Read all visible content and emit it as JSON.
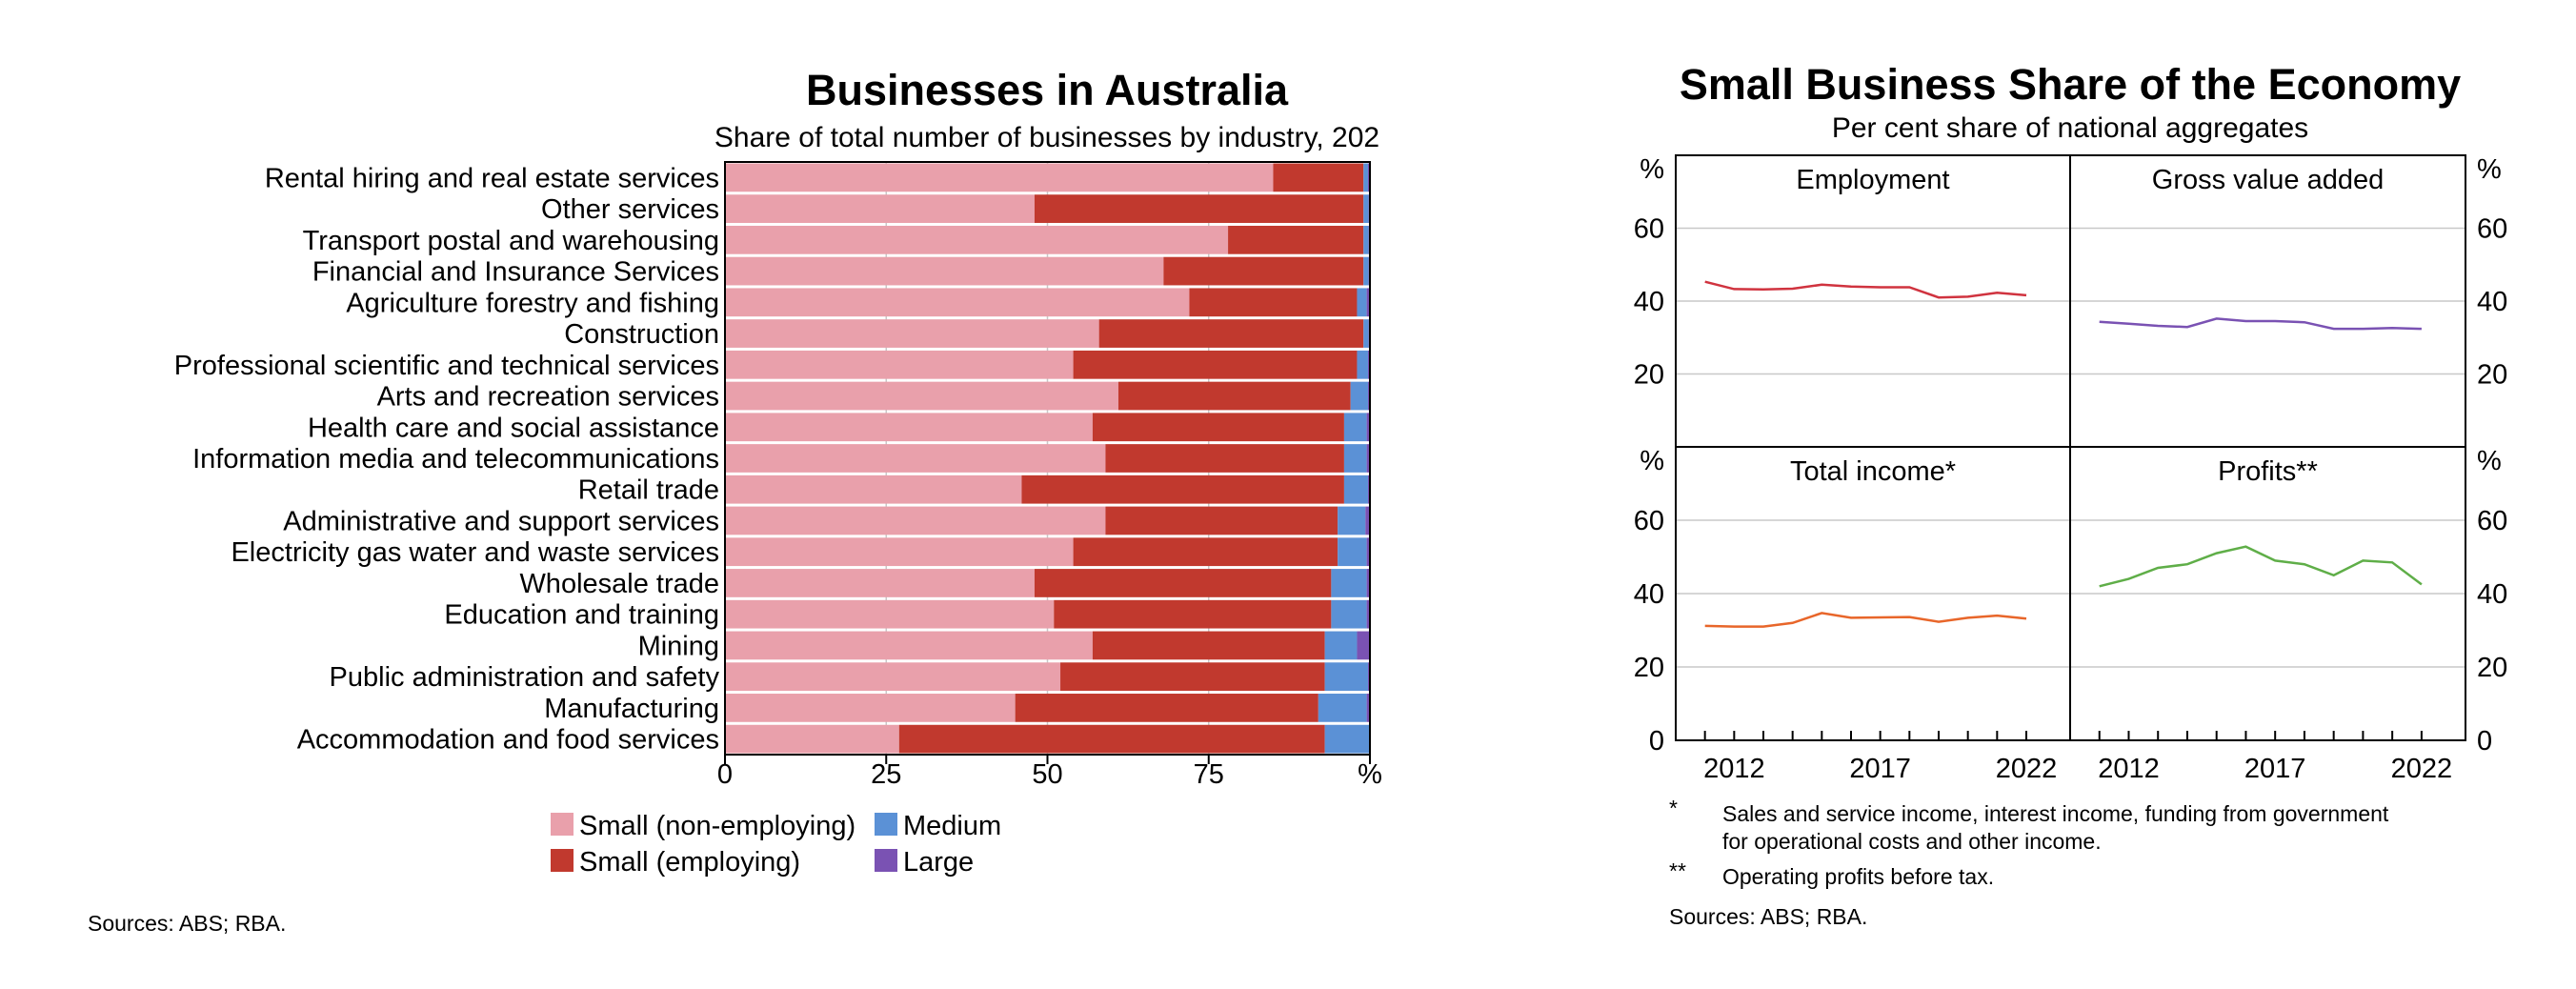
{
  "colors": {
    "small_non_employing": "#e9a0ab",
    "small_employing": "#c1392e",
    "medium": "#5b91d6",
    "large": "#7a52b3",
    "employment": "#d0333f",
    "gva": "#7a52b3",
    "total_income": "#e8662a",
    "profits": "#5fae48",
    "axis": "#000000",
    "grid": "#c8c8c8"
  },
  "left": {
    "title": "Businesses in Australia",
    "subtitle": "Share of total number of businesses by industry, 202",
    "unit": "%",
    "legend": [
      "Small (non-employing)",
      "Medium",
      "Small (employing)",
      "Large"
    ],
    "note": "Sources: ABS; RBA."
  },
  "right": {
    "title": "Small Business Share of the Economy",
    "subtitle": "Per cent share of national aggregates",
    "unit_label": "%",
    "y_ticks": [
      "60",
      "40",
      "20"
    ],
    "zero_label": "0",
    "x_ticks": [
      "2012",
      "2017",
      "2022"
    ],
    "panels": [
      "Employment",
      "Gross value added",
      "Total income*",
      "Profits**"
    ],
    "footnotes": [
      {
        "mark": "*",
        "text": "Sales and service income, interest income, funding from government",
        "text2": "for operational costs and other income."
      },
      {
        "mark": "**",
        "text": "Operating profits before tax."
      }
    ],
    "note": "Sources: ABS; RBA."
  },
  "chart_data": [
    {
      "type": "bar",
      "stacked": true,
      "orientation": "horizontal",
      "title": "Businesses in Australia",
      "subtitle": "Share of total number of businesses by industry, 202",
      "xlim": [
        0,
        100
      ],
      "x_ticks": [
        "0",
        "25",
        "50",
        "75",
        "%"
      ],
      "legend_position": "bottom",
      "categories": [
        "Rental hiring and real estate services",
        "Other services",
        "Transport postal and warehousing",
        "Financial and Insurance Services",
        "Agriculture forestry and fishing",
        "Construction",
        "Professional scientific and technical services",
        "Arts and recreation services",
        "Health care and social assistance",
        "Information media and telecommunications",
        "Retail trade",
        "Administrative and support services",
        "Electricity gas water and waste services",
        "Wholesale trade",
        "Education and training",
        "Mining",
        "Public administration and safety",
        "Manufacturing",
        "Accommodation and food services"
      ],
      "series": [
        {
          "name": "Small (non-employing)",
          "values": [
            85,
            48,
            78,
            68,
            72,
            58,
            54,
            61,
            57,
            59,
            46,
            59,
            54,
            48,
            51,
            57,
            52,
            45,
            27
          ]
        },
        {
          "name": "Small (employing)",
          "values": [
            14,
            51,
            21,
            31,
            26,
            41,
            44,
            36,
            39,
            37,
            50,
            36,
            41,
            46,
            43,
            36,
            41,
            47,
            66
          ]
        },
        {
          "name": "Medium",
          "values": [
            0.7,
            0.8,
            0.8,
            0.8,
            1.5,
            0.8,
            1.7,
            2.7,
            3.5,
            3.5,
            3.7,
            4.3,
            4.5,
            5.5,
            5.5,
            5.0,
            6.7,
            7.5,
            7.0
          ]
        },
        {
          "name": "Large",
          "values": [
            0.3,
            0.2,
            0.2,
            0.2,
            0.5,
            0.2,
            0.3,
            0.3,
            0.5,
            0.5,
            0.3,
            0.7,
            0.5,
            0.5,
            0.5,
            2.0,
            0.3,
            0.5,
            0.0
          ]
        }
      ]
    },
    {
      "type": "line",
      "title": "Small Business Share of the Economy",
      "subtitle": "Per cent share of national aggregates",
      "ylim": [
        0,
        80
      ],
      "xlim": [
        2010,
        2023.5
      ],
      "x": [
        2011,
        2012,
        2013,
        2014,
        2015,
        2016,
        2017,
        2018,
        2019,
        2020,
        2021,
        2022
      ],
      "panels": [
        {
          "name": "Employment",
          "values": [
            45.3,
            43.3,
            43.2,
            43.4,
            44.5,
            44.0,
            43.8,
            43.8,
            41.0,
            41.2,
            42.3,
            41.6
          ]
        },
        {
          "name": "Gross value added",
          "values": [
            34.3,
            33.8,
            33.2,
            32.9,
            35.2,
            34.5,
            34.5,
            34.2,
            32.4,
            32.4,
            32.6,
            32.4
          ]
        },
        {
          "name": "Total income*",
          "values": [
            31.2,
            31.0,
            31.0,
            32.0,
            34.7,
            33.4,
            33.5,
            33.6,
            32.3,
            33.4,
            34.0,
            33.2
          ]
        },
        {
          "name": "Profits**",
          "values": [
            42.0,
            44.0,
            47.0,
            48.0,
            51.0,
            52.8,
            49.0,
            48.0,
            45.0,
            49.0,
            48.5,
            42.5
          ]
        }
      ]
    }
  ]
}
